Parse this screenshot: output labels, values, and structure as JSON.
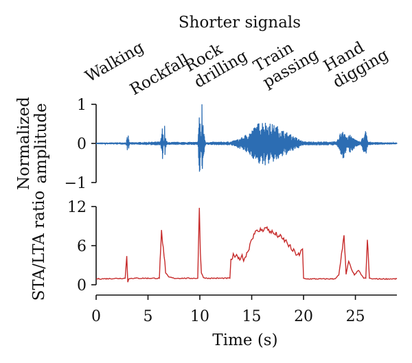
{
  "chart_data": [
    {
      "type": "line",
      "title": "Shorter signals",
      "ylabel": "Normalized amplitude",
      "xlim": [
        0,
        29
      ],
      "ylim": [
        -1,
        1
      ],
      "yticks": [
        1,
        0,
        -1
      ],
      "ytick_labels": [
        "1",
        "0",
        "−1"
      ],
      "color": "#2c6db3",
      "grid": false,
      "events": [
        {
          "label": "Walking",
          "start": 2.9,
          "end": 3.3,
          "peak": 0.2
        },
        {
          "label": "Rockfall",
          "start": 6.2,
          "end": 7.0,
          "peak": 0.45
        },
        {
          "label": "Rock drilling",
          "start": 9.8,
          "end": 10.6,
          "peak": 1.0
        },
        {
          "label": "Train passing",
          "start": 13.0,
          "end": 20.0,
          "peak": 0.6
        },
        {
          "label": "Hand digging",
          "start": 23.2,
          "end": 26.5,
          "peak": 0.45
        }
      ],
      "series": [
        {
          "x": [
            0,
            2.9,
            3.0,
            3.1,
            3.3,
            6.2,
            6.4,
            6.6,
            7.0,
            9.8,
            10.0,
            10.2,
            10.6,
            13.0,
            14.0,
            15.0,
            15.5,
            16.0,
            16.5,
            17.0,
            17.5,
            18.0,
            19.0,
            20.0,
            23.2,
            23.8,
            24.2,
            24.5,
            25.0,
            25.5,
            26.0,
            26.2,
            26.5,
            29.0
          ],
          "y": [
            0.02,
            0.03,
            0.2,
            -0.15,
            0.03,
            0.05,
            0.45,
            -0.2,
            0.04,
            0.04,
            1.0,
            -0.7,
            0.04,
            0.05,
            0.15,
            0.35,
            0.5,
            0.6,
            0.55,
            0.5,
            0.45,
            0.35,
            0.2,
            0.05,
            0.05,
            0.45,
            0.15,
            0.25,
            0.1,
            0.05,
            0.35,
            0.05,
            0.04,
            0.02
          ]
        }
      ]
    },
    {
      "type": "line",
      "xlabel": "Time (s)",
      "ylabel": "STA/LTA ratio",
      "xlim": [
        0,
        29
      ],
      "xticks": [
        0,
        5,
        10,
        15,
        20,
        25
      ],
      "ylim": [
        0,
        12
      ],
      "yticks": [
        0,
        6,
        12
      ],
      "color": "#c62a2a",
      "grid": false,
      "series": [
        {
          "x": [
            0,
            2.8,
            2.95,
            3.05,
            3.15,
            3.4,
            6.1,
            6.3,
            6.4,
            6.55,
            6.7,
            7.0,
            7.5,
            9.8,
            9.95,
            10.05,
            10.15,
            10.35,
            10.7,
            11.5,
            12.9,
            13.0,
            13.3,
            13.7,
            14.0,
            14.3,
            14.6,
            14.9,
            15.2,
            15.6,
            16.0,
            16.4,
            16.8,
            17.2,
            17.6,
            18.0,
            18.4,
            18.8,
            19.2,
            19.6,
            19.9,
            20.0,
            20.2,
            23.0,
            23.4,
            23.75,
            23.9,
            24.1,
            24.35,
            24.6,
            24.9,
            25.3,
            25.8,
            26.0,
            26.15,
            26.35,
            26.7,
            29.0
          ],
          "y": [
            0.9,
            1.0,
            4.4,
            0.4,
            0.9,
            1.0,
            1.0,
            8.4,
            6.4,
            4.4,
            1.8,
            1.2,
            1.0,
            1.0,
            11.8,
            4.9,
            1.8,
            1.1,
            1.0,
            1.0,
            1.0,
            3.9,
            4.5,
            4.0,
            4.3,
            4.0,
            5.0,
            6.6,
            7.8,
            8.2,
            8.5,
            8.7,
            8.2,
            7.8,
            7.5,
            7.0,
            6.5,
            5.5,
            4.9,
            4.5,
            5.5,
            1.0,
            0.9,
            0.9,
            1.5,
            5.5,
            7.6,
            1.6,
            3.6,
            2.5,
            1.5,
            2.2,
            1.0,
            1.0,
            6.9,
            1.0,
            0.9,
            0.9
          ]
        }
      ]
    }
  ]
}
